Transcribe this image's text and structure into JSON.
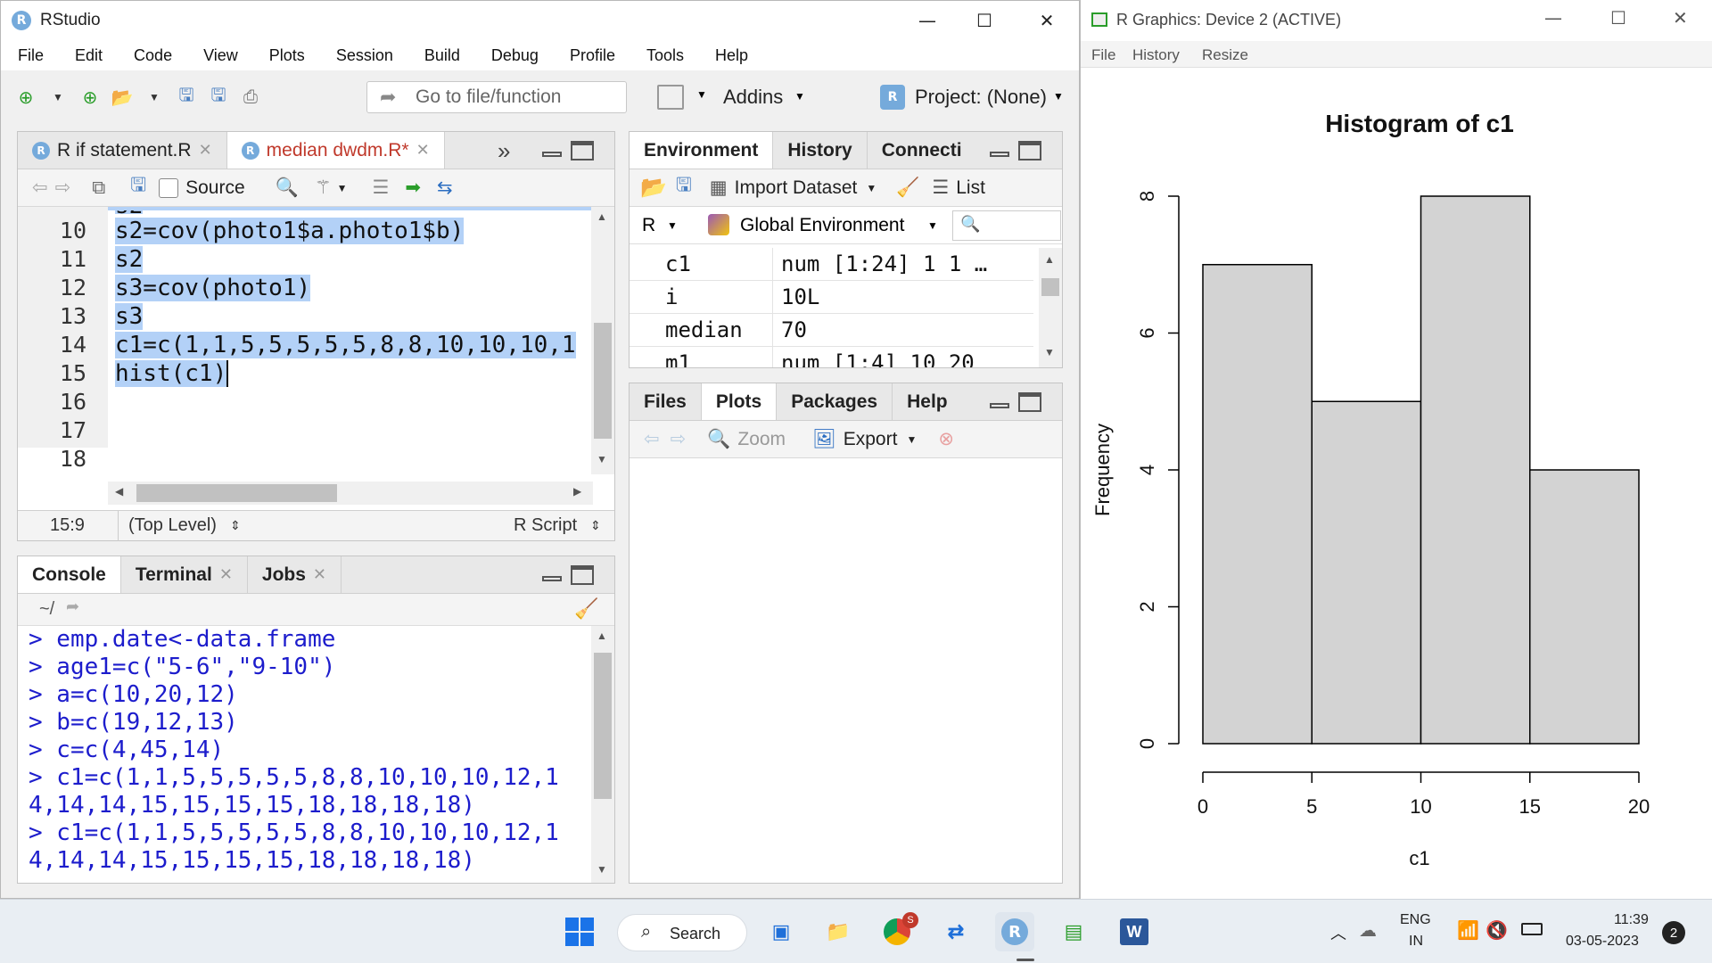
{
  "rstudio": {
    "title": "RStudio",
    "menu": [
      "File",
      "Edit",
      "Code",
      "View",
      "Plots",
      "Session",
      "Build",
      "Debug",
      "Profile",
      "Tools",
      "Help"
    ],
    "goto_placeholder": "Go to file/function",
    "addins": "Addins",
    "project": "Project: (None)"
  },
  "editor": {
    "tabs": [
      {
        "label": "R if statement.R",
        "active": false
      },
      {
        "label": "median dwdm.R*",
        "active": true
      }
    ],
    "source_label": "Source",
    "lines": [
      {
        "num": "10",
        "text": "s2=cov(photo1$a.photo1$b)"
      },
      {
        "num": "11",
        "text": "s2"
      },
      {
        "num": "12",
        "text": "s3=cov(photo1)"
      },
      {
        "num": "13",
        "text": "s3"
      },
      {
        "num": "14",
        "text": "c1=c(1,1,5,5,5,5,5,8,8,10,10,10,1"
      },
      {
        "num": "15",
        "text": "hist(c1)"
      },
      {
        "num": "16",
        "text": ""
      },
      {
        "num": "17",
        "text": ""
      },
      {
        "num": "18",
        "text": ""
      }
    ],
    "partial_top_line": "s2",
    "status": {
      "position": "15:9",
      "scope": "(Top Level)",
      "type": "R Script"
    }
  },
  "console": {
    "tabs": [
      "Console",
      "Terminal",
      "Jobs"
    ],
    "path": "~/",
    "lines": [
      "> emp.date<-data.frame",
      "> age1=c(\"5-6\",\"9-10\")",
      "> a=c(10,20,12)",
      "> b=c(19,12,13)",
      "> c=c(4,45,14)",
      "> c1=c(1,1,5,5,5,5,5,8,8,10,10,10,12,1",
      "4,14,14,15,15,15,15,18,18,18,18)",
      "> c1=c(1,1,5,5,5,5,5,8,8,10,10,10,12,1",
      "4,14,14,15,15,15,15,18,18,18,18)"
    ]
  },
  "environment": {
    "tabs": [
      "Environment",
      "History",
      "Connecti"
    ],
    "import_label": "Import Dataset",
    "list_label": "List",
    "lang": "R",
    "scope": "Global Environment",
    "rows": [
      {
        "name": "c1",
        "value": "num [1:24] 1 1 …"
      },
      {
        "name": "i",
        "value": "10L"
      },
      {
        "name": "median",
        "value": "70"
      },
      {
        "name": "m1",
        "value": "num [1:4] 10 20"
      }
    ]
  },
  "files": {
    "tabs": [
      "Files",
      "Plots",
      "Packages",
      "Help"
    ],
    "zoom_label": "Zoom",
    "export_label": "Export"
  },
  "rgraphics": {
    "title": "R Graphics: Device 2 (ACTIVE)",
    "menu": [
      "File",
      "History",
      "Resize"
    ]
  },
  "chart_data": {
    "type": "bar",
    "title": "Histogram of c1",
    "xlabel": "c1",
    "ylabel": "Frequency",
    "bins": [
      [
        0,
        5
      ],
      [
        5,
        10
      ],
      [
        10,
        15
      ],
      [
        15,
        20
      ]
    ],
    "values": [
      7,
      5,
      8,
      4
    ],
    "xlim": [
      0,
      20
    ],
    "ylim": [
      0,
      8
    ],
    "xticks": [
      0,
      5,
      10,
      15,
      20
    ],
    "yticks": [
      0,
      2,
      4,
      6,
      8
    ],
    "bar_color": "#d3d3d3",
    "grid": false
  },
  "taskbar": {
    "search_label": "Search",
    "lang_top": "ENG",
    "lang_bottom": "IN",
    "time": "11:39",
    "date": "03-05-2023",
    "notifications": "2",
    "chrome_badge": "S"
  }
}
